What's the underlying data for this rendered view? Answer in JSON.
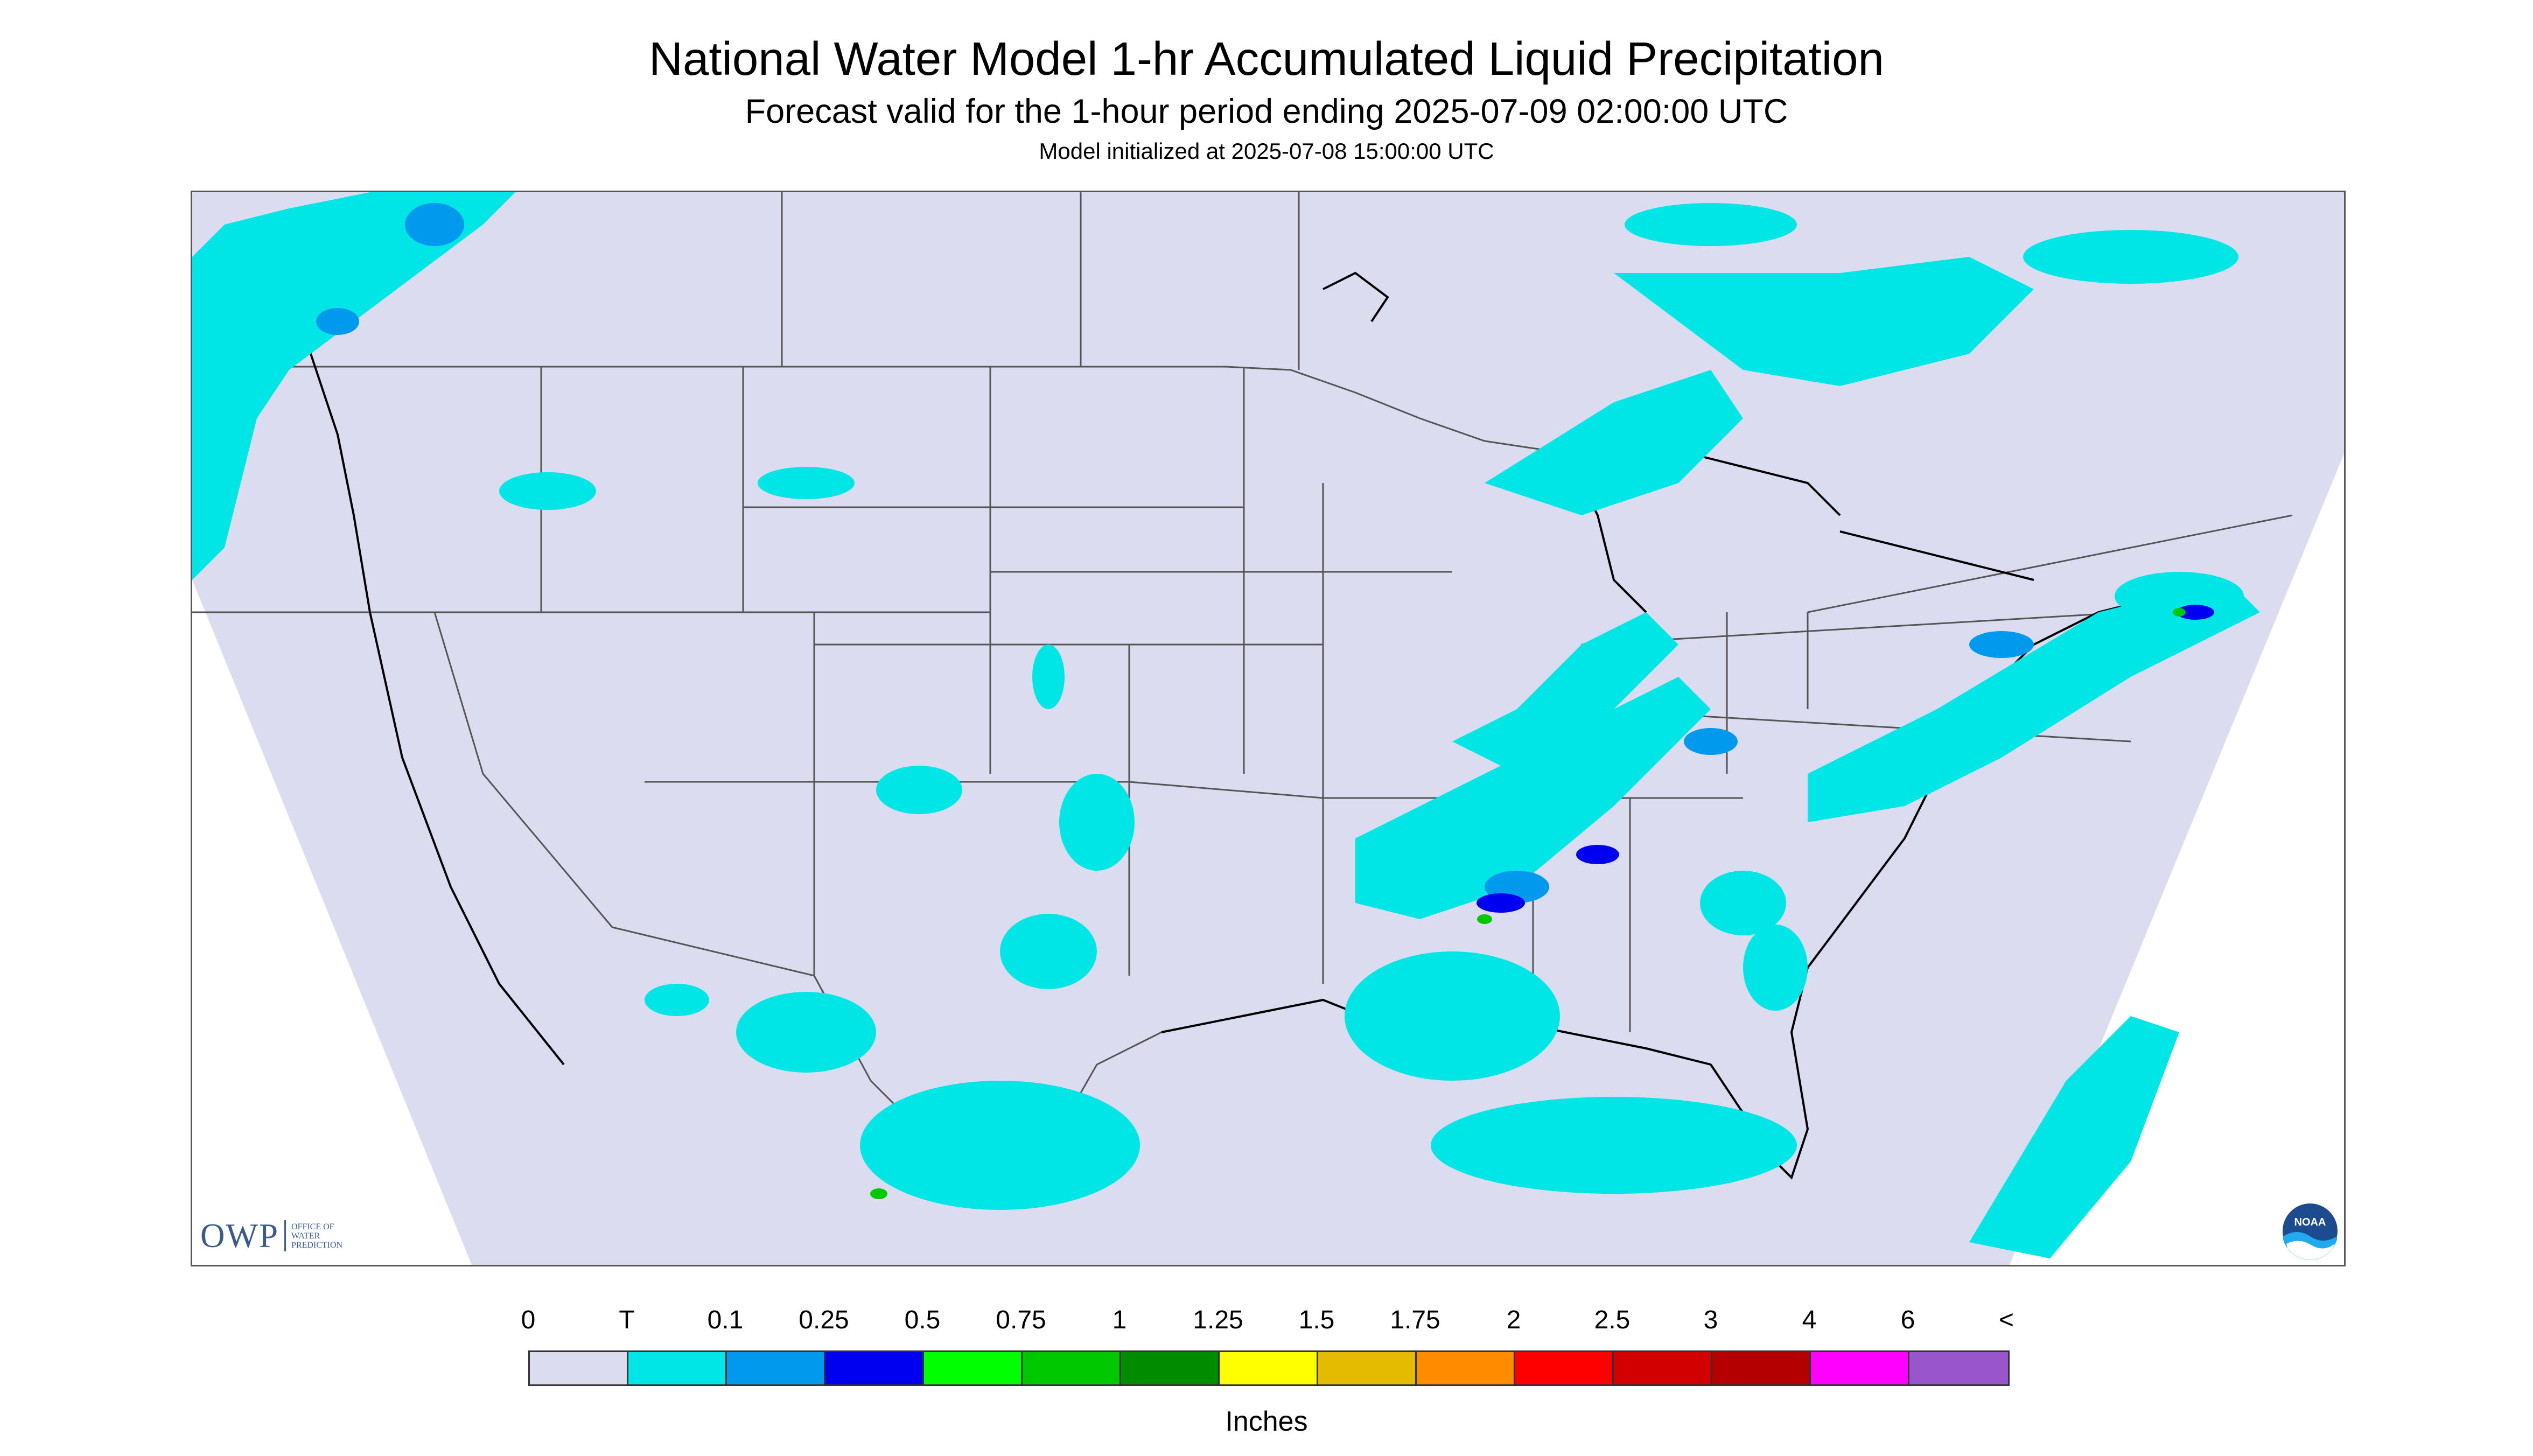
{
  "header": {
    "title": "National Water Model 1-hr Accumulated Liquid Precipitation",
    "subtitle": "Forecast valid for the 1-hour period ending 2025-07-09 02:00:00 UTC",
    "init": "Model initialized at 2025-07-08 15:00:00 UTC"
  },
  "branding": {
    "owp_word": "OWP",
    "owp_sub1": "Office of",
    "owp_sub2": "Water",
    "owp_sub3": "Prediction",
    "noaa_word": "NOAA"
  },
  "legend": {
    "labels": [
      "0",
      "T",
      "0.1",
      "0.25",
      "0.5",
      "0.75",
      "1",
      "1.25",
      "1.5",
      "1.75",
      "2",
      "2.5",
      "3",
      "4",
      "6",
      "<"
    ],
    "colors": [
      "#dcdcf0",
      "#00e5e5",
      "#0099ee",
      "#0000f0",
      "#00ff00",
      "#00c800",
      "#008c00",
      "#ffff00",
      "#e5bb00",
      "#ff8c00",
      "#ff0000",
      "#d20000",
      "#b40000",
      "#ff00ff",
      "#9955cc"
    ],
    "units": "Inches"
  },
  "map": {
    "domain_fill": "#dcdcf0",
    "precip_colors": {
      "trace": "#00e5e5",
      "light": "#0099ee",
      "moderate": "#0000f0",
      "heavy": "#00c800"
    }
  }
}
